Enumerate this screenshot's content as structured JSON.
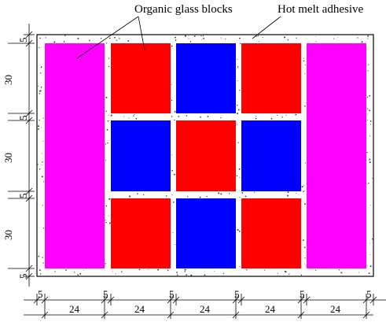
{
  "callouts": {
    "blocks": "Organic glass blocks",
    "adhesive": "Hot melt adhesive"
  },
  "colors": {
    "side_block": "#ff00ff",
    "red_block": "#ff0000",
    "blue_block": "#0000ff",
    "frame": "#000000",
    "adhesive_dots": "#333333"
  },
  "blocks": {
    "side": [
      "left-column",
      "right-column"
    ],
    "grid_colors": [
      [
        "red",
        "blue",
        "red"
      ],
      [
        "blue",
        "red",
        "blue"
      ],
      [
        "red",
        "blue",
        "red"
      ]
    ]
  },
  "dimensions": {
    "vertical": [
      "5",
      "30",
      "5",
      "30",
      "5",
      "30",
      "5"
    ],
    "horizontal_gaps": [
      "5",
      "5",
      "5",
      "5",
      "5",
      "5"
    ],
    "horizontal_widths": [
      "24",
      "24",
      "24",
      "24",
      "24"
    ]
  }
}
